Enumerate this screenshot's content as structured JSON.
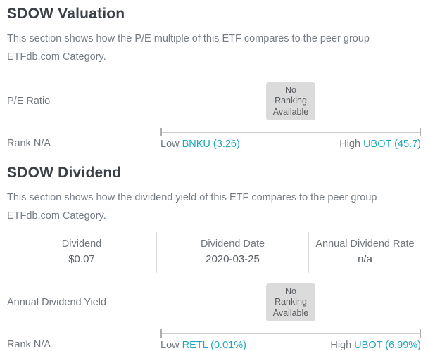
{
  "colors": {
    "accent_teal": "#1ba7bd",
    "badge_bg": "#dbdbdb",
    "title_text": "#3b4046",
    "body_text": "#757c83",
    "track": "#cccccc"
  },
  "valuation": {
    "title": "SDOW Valuation",
    "description": "This section shows how the P/E multiple of this ETF compares to the peer group ETFdb.com Category.",
    "metric_label": "P/E Ratio",
    "no_ranking_text": "No Ranking Available",
    "scale": {
      "rank_label": "Rank N/A",
      "low_label": "Low",
      "low_link": "BNKU (3.26)",
      "high_label": "High",
      "high_link": "UBOT (45.7)"
    }
  },
  "dividend": {
    "title": "SDOW Dividend",
    "description": "This section shows how the dividend yield of this ETF compares to the peer group ETFdb.com Category.",
    "stats": [
      {
        "label": "Dividend",
        "value": "$0.07"
      },
      {
        "label": "Dividend Date",
        "value": "2020-03-25"
      },
      {
        "label": "Annual Dividend Rate",
        "value": "n/a"
      }
    ],
    "metric_label": "Annual Dividend Yield",
    "no_ranking_text": "No Ranking Available",
    "scale": {
      "rank_label": "Rank N/A",
      "low_label": "Low",
      "low_link": "RETL (0.01%)",
      "high_label": "High",
      "high_link": "UBOT (6.99%)"
    }
  }
}
